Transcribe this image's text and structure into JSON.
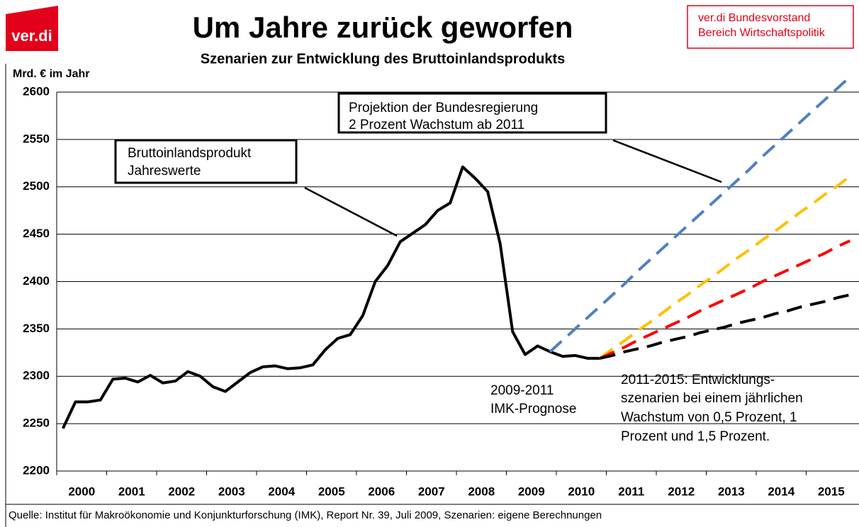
{
  "logo": "ver.di",
  "publisher": [
    "ver.di  Bundesvorstand",
    "Bereich Wirtschaftspolitik"
  ],
  "source": "Quelle: Institut für Makroökonomie und Konjunkturforschung (IMK),  Report Nr. 39, Juli 2009, Szenarien: eigene Berechnungen",
  "chart_data": {
    "type": "line",
    "title": "Um Jahre zurück geworfen",
    "subtitle": "Szenarien zur Entwicklung des Bruttoinlandsprodukts",
    "y_label": "Mrd. € im Jahr",
    "categories": [
      "2000",
      null,
      null,
      null,
      "2001",
      null,
      null,
      null,
      "2002",
      null,
      null,
      null,
      "2003",
      null,
      null,
      null,
      "2004",
      null,
      null,
      null,
      "2005",
      null,
      null,
      null,
      "2006",
      null,
      null,
      null,
      "2007",
      null,
      null,
      null,
      "2008",
      null,
      null,
      null,
      "2009",
      null,
      null,
      null,
      "2010",
      null,
      null,
      null,
      "2011",
      null,
      null,
      null,
      "2012",
      null,
      null,
      null,
      "2013",
      null,
      null,
      null,
      "2014",
      null,
      null,
      null,
      "2015",
      null,
      null,
      null
    ],
    "series": [
      {
        "color": "#000000",
        "dashed": false,
        "values": [
          2245,
          2273,
          2273,
          2275,
          2297,
          2298,
          2294,
          2301,
          2293,
          2295,
          2305,
          2300,
          2289,
          2284,
          2294,
          2304,
          2310,
          2311,
          2308,
          2309,
          2312,
          2328,
          2340,
          2344,
          2364,
          2400,
          2417,
          2442,
          2451,
          2460,
          2475,
          2483,
          2521,
          2509,
          2495,
          2440,
          2347,
          2323,
          2332,
          2326,
          2321,
          2322,
          2319,
          2319,
          null,
          null,
          null,
          null,
          null,
          null,
          null,
          null,
          null,
          null,
          null,
          null,
          null,
          null,
          null,
          null,
          null,
          null,
          null,
          null
        ]
      },
      {
        "color": "#4f81bd",
        "dashed": true,
        "values": [
          null,
          null,
          null,
          null,
          null,
          null,
          null,
          null,
          null,
          null,
          null,
          null,
          null,
          null,
          null,
          null,
          null,
          null,
          null,
          null,
          null,
          null,
          null,
          null,
          null,
          null,
          null,
          null,
          null,
          null,
          null,
          null,
          null,
          null,
          null,
          null,
          null,
          null,
          null,
          2326,
          2338,
          2350,
          2362,
          2374,
          2386,
          2398,
          2411,
          2423,
          2435,
          2447,
          2459,
          2471,
          2483,
          2495,
          2507,
          2519,
          2532,
          2544,
          2556,
          2568,
          2580,
          2592,
          2604,
          2616
        ]
      },
      {
        "color": "#ffc000",
        "dashed": true,
        "values": [
          null,
          null,
          null,
          null,
          null,
          null,
          null,
          null,
          null,
          null,
          null,
          null,
          null,
          null,
          null,
          null,
          null,
          null,
          null,
          null,
          null,
          null,
          null,
          null,
          null,
          null,
          null,
          null,
          null,
          null,
          null,
          null,
          null,
          null,
          null,
          null,
          null,
          null,
          null,
          null,
          null,
          null,
          null,
          2319,
          2329,
          2338,
          2348,
          2357,
          2367,
          2377,
          2386,
          2396,
          2405,
          2415,
          2425,
          2434,
          2444,
          2453,
          2463,
          2473,
          2482,
          2492,
          2501,
          2511
        ]
      },
      {
        "color": "#ff0000",
        "dashed": true,
        "values": [
          null,
          null,
          null,
          null,
          null,
          null,
          null,
          null,
          null,
          null,
          null,
          null,
          null,
          null,
          null,
          null,
          null,
          null,
          null,
          null,
          null,
          null,
          null,
          null,
          null,
          null,
          null,
          null,
          null,
          null,
          null,
          null,
          null,
          null,
          null,
          null,
          null,
          null,
          null,
          null,
          null,
          null,
          null,
          2319,
          2325,
          2331,
          2338,
          2344,
          2350,
          2356,
          2362,
          2369,
          2375,
          2381,
          2387,
          2393,
          2400,
          2406,
          2412,
          2418,
          2424,
          2430,
          2437,
          2443
        ]
      },
      {
        "color": "#000000",
        "dashed": true,
        "values": [
          null,
          null,
          null,
          null,
          null,
          null,
          null,
          null,
          null,
          null,
          null,
          null,
          null,
          null,
          null,
          null,
          null,
          null,
          null,
          null,
          null,
          null,
          null,
          null,
          null,
          null,
          null,
          null,
          null,
          null,
          null,
          null,
          null,
          null,
          null,
          null,
          null,
          null,
          null,
          null,
          null,
          null,
          null,
          2319,
          2322,
          2326,
          2329,
          2332,
          2336,
          2339,
          2342,
          2346,
          2349,
          2352,
          2356,
          2359,
          2362,
          2366,
          2369,
          2373,
          2376,
          2379,
          2383,
          2386
        ]
      }
    ],
    "ylim": [
      2200,
      2600
    ],
    "yticks": [
      2200,
      2250,
      2300,
      2350,
      2400,
      2450,
      2500,
      2550,
      2600
    ],
    "grid": true,
    "annotations": [
      [
        "Bruttoinlandsprodukt",
        "Jahreswerte"
      ],
      [
        "Projektion der Bundesregierung",
        "2 Prozent Wachstum ab 2011"
      ],
      [
        "2009-2011",
        "IMK-Prognose"
      ],
      [
        "2011-2015: Entwicklungs-",
        "szenarien bei einem jährlichen",
        "Wachstum von 0,5 Prozent, 1",
        "Prozent und 1,5 Prozent."
      ]
    ]
  }
}
